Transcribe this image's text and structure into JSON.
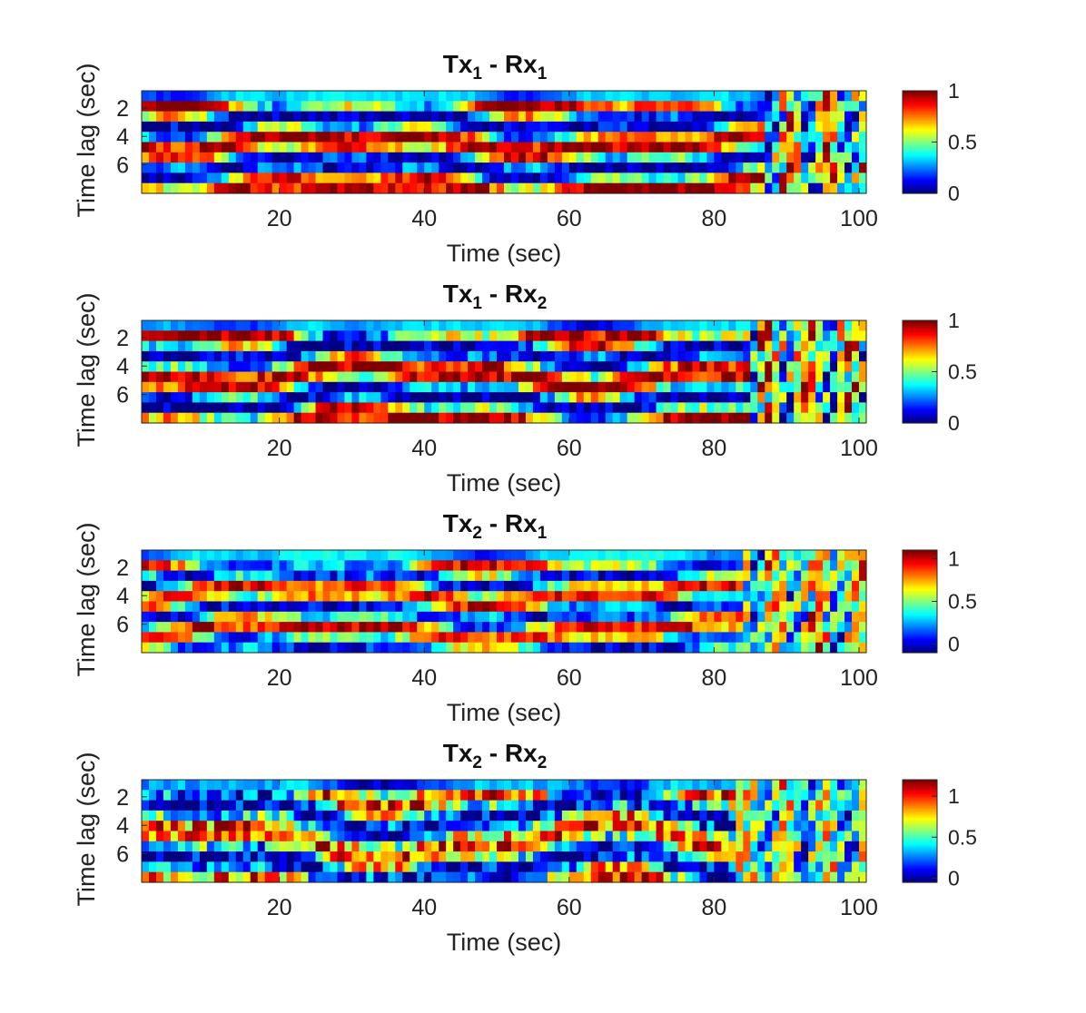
{
  "chart_data": [
    {
      "type": "heatmap",
      "title": {
        "base1": "Tx",
        "sub1": "1",
        "sep": " - Rx",
        "sub2": "1"
      },
      "xlabel": "Time (sec)",
      "ylabel": "Time lag (sec)",
      "xlim": [
        1,
        101
      ],
      "ylim": [
        0.8,
        8
      ],
      "xticks": [
        20,
        40,
        60,
        80,
        100
      ],
      "xtick_labels": [
        "20",
        "40",
        "60",
        "80",
        "100"
      ],
      "yticks": [
        2,
        4,
        6
      ],
      "ytick_labels": [
        "2",
        "4",
        "6"
      ],
      "colormap": "jet",
      "clim": [
        0,
        1
      ],
      "colorbar_ticks": [
        0,
        0.5,
        1
      ],
      "colorbar_labels": [
        "0",
        "0.5",
        "1"
      ],
      "n_time": 100,
      "n_lag": 10,
      "pattern": {
        "seed": 11,
        "bands": 2.2,
        "drift": 0.35,
        "noise": 0.12,
        "chaos_start": 86
      }
    },
    {
      "type": "heatmap",
      "title": {
        "base1": "Tx",
        "sub1": "1",
        "sep": " - Rx",
        "sub2": "2"
      },
      "xlabel": "Time (sec)",
      "ylabel": "Time lag (sec)",
      "xlim": [
        1,
        101
      ],
      "ylim": [
        0.8,
        8
      ],
      "xticks": [
        20,
        40,
        60,
        80,
        100
      ],
      "xtick_labels": [
        "20",
        "40",
        "60",
        "80",
        "100"
      ],
      "yticks": [
        2,
        4,
        6
      ],
      "ytick_labels": [
        "2",
        "4",
        "6"
      ],
      "colormap": "jet",
      "clim": [
        0,
        1
      ],
      "colorbar_ticks": [
        0,
        0.5,
        1
      ],
      "colorbar_labels": [
        "0",
        "0.5",
        "1"
      ],
      "n_time": 100,
      "n_lag": 10,
      "pattern": {
        "seed": 23,
        "bands": 2.3,
        "drift": 0.45,
        "noise": 0.14,
        "chaos_start": 84
      }
    },
    {
      "type": "heatmap",
      "title": {
        "base1": "Tx",
        "sub1": "2",
        "sep": " - Rx",
        "sub2": "1"
      },
      "xlabel": "Time (sec)",
      "ylabel": "Time lag (sec)",
      "xlim": [
        1,
        101
      ],
      "ylim": [
        0.8,
        8
      ],
      "xticks": [
        20,
        40,
        60,
        80,
        100
      ],
      "xtick_labels": [
        "20",
        "40",
        "60",
        "80",
        "100"
      ],
      "yticks": [
        2,
        4,
        6
      ],
      "ytick_labels": [
        "2",
        "4",
        "6"
      ],
      "colormap": "jet",
      "clim": [
        -0.1,
        1.1
      ],
      "colorbar_ticks": [
        0,
        0.5,
        1
      ],
      "colorbar_labels": [
        "0",
        "0.5",
        "1"
      ],
      "n_time": 100,
      "n_lag": 10,
      "pattern": {
        "seed": 37,
        "bands": 1.8,
        "drift": 0.5,
        "noise": 0.15,
        "chaos_start": 83
      }
    },
    {
      "type": "heatmap",
      "title": {
        "base1": "Tx",
        "sub1": "2",
        "sep": " - Rx",
        "sub2": "2"
      },
      "xlabel": "Time (sec)",
      "ylabel": "Time lag (sec)",
      "xlim": [
        1,
        101
      ],
      "ylim": [
        0.8,
        8
      ],
      "xticks": [
        20,
        40,
        60,
        80,
        100
      ],
      "xtick_labels": [
        "20",
        "40",
        "60",
        "80",
        "100"
      ],
      "yticks": [
        2,
        4,
        6
      ],
      "ytick_labels": [
        "2",
        "4",
        "6"
      ],
      "colormap": "jet",
      "clim": [
        -0.05,
        1.2
      ],
      "colorbar_ticks": [
        0,
        0.5,
        1
      ],
      "colorbar_labels": [
        "0",
        "0.5",
        "1"
      ],
      "n_time": 100,
      "n_lag": 10,
      "pattern": {
        "seed": 51,
        "bands": 2.6,
        "drift": 0.7,
        "noise": 0.3,
        "chaos_start": 82
      }
    }
  ]
}
